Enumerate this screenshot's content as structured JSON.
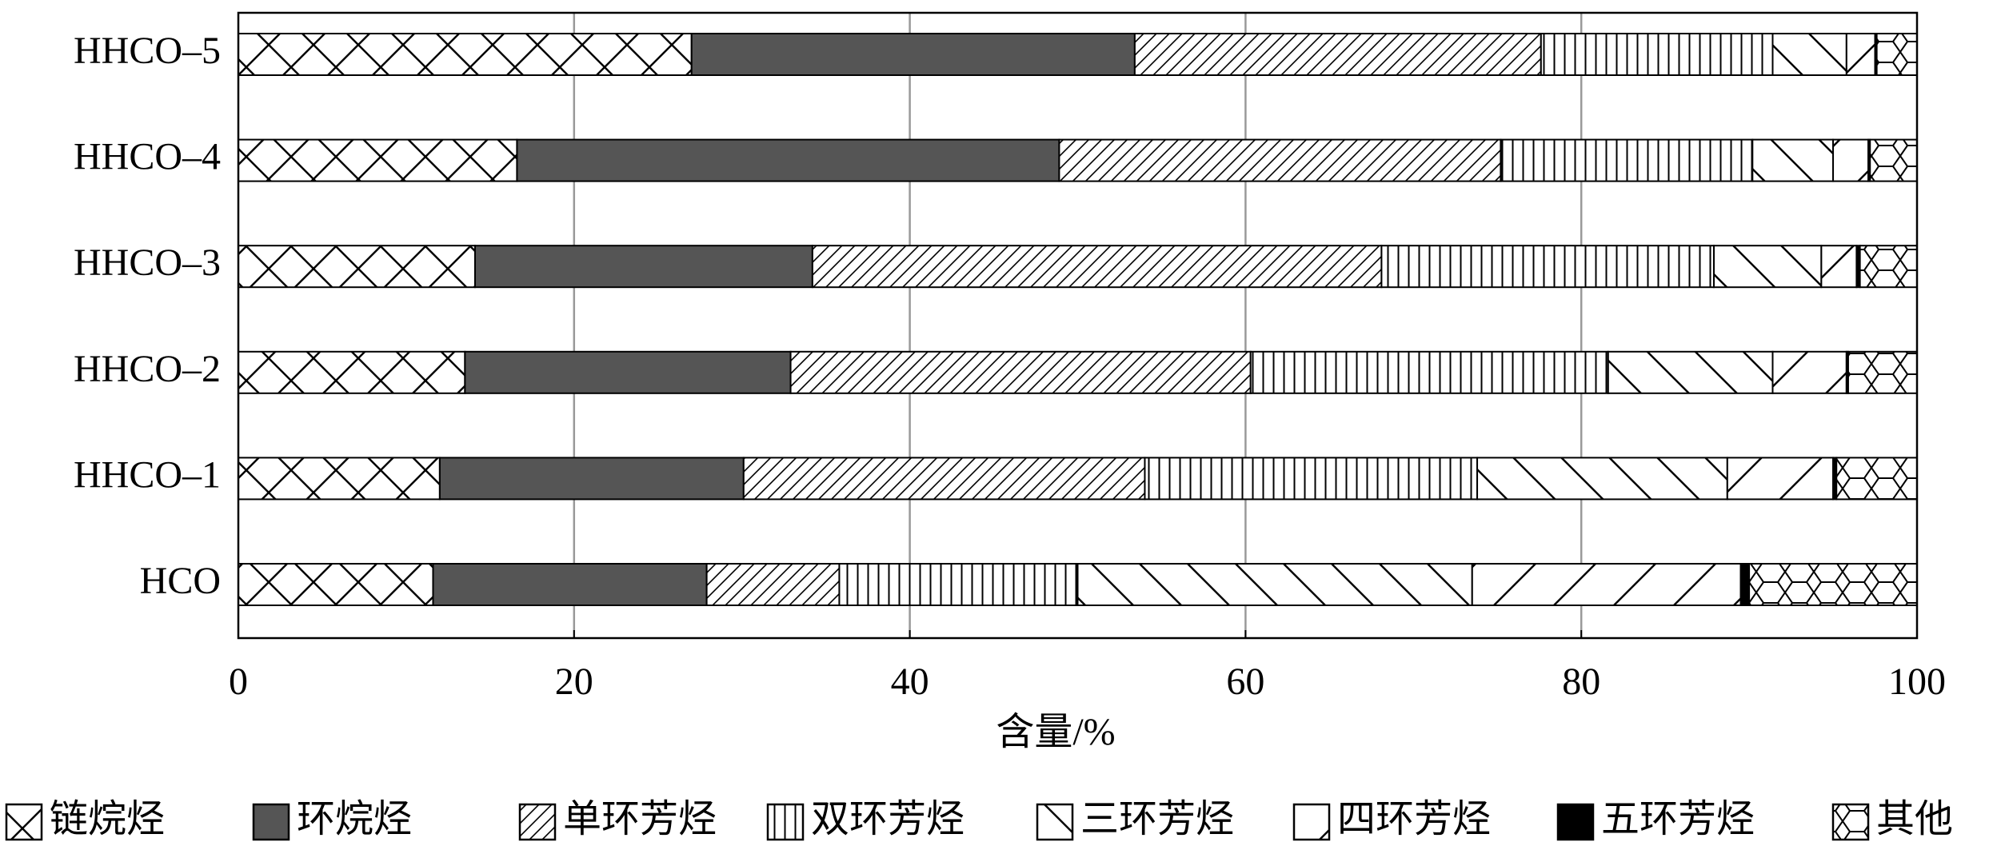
{
  "chart_data": {
    "type": "barh_stacked",
    "xlabel": "含量/%",
    "categories": [
      "HHCO–5",
      "HHCO–4",
      "HHCO–3",
      "HHCO–2",
      "HHCO–1",
      "HCO"
    ],
    "series": [
      {
        "name": "链烷烃",
        "color": "#ffffff",
        "hatch": "cross",
        "values": [
          27.0,
          16.6,
          14.1,
          13.5,
          12.0,
          11.6
        ]
      },
      {
        "name": "环烷烃",
        "color": "#555555",
        "values": [
          26.4,
          32.3,
          20.1,
          19.4,
          18.1,
          16.3
        ]
      },
      {
        "name": "单环芳烃",
        "color": "#ffffff",
        "hatch": "fine-diag",
        "values": [
          24.2,
          26.3,
          33.9,
          27.4,
          23.9,
          7.9
        ]
      },
      {
        "name": "双环芳烃",
        "color": "#ffffff",
        "hatch": "vertical",
        "values": [
          13.8,
          15.0,
          19.8,
          21.3,
          19.8,
          14.2
        ]
      },
      {
        "name": "三环芳烃",
        "color": "#ffffff",
        "hatch": "back-diag",
        "values": [
          4.4,
          4.8,
          6.4,
          9.8,
          14.9,
          23.5
        ]
      },
      {
        "name": "四环芳烃",
        "color": "#ffffff",
        "hatch": "wide-diag",
        "values": [
          1.7,
          2.1,
          2.1,
          4.4,
          6.3,
          16.0
        ]
      },
      {
        "name": "五环芳烃",
        "color": "#000000",
        "values": [
          0.1,
          0.1,
          0.2,
          0.1,
          0.2,
          0.5
        ]
      },
      {
        "name": "其他",
        "color": "#ffffff",
        "hatch": "hex",
        "values": [
          2.4,
          2.8,
          3.4,
          4.1,
          4.8,
          10.0
        ]
      }
    ],
    "xlim": [
      0,
      100
    ],
    "xticks": [
      0,
      20,
      40,
      60,
      80,
      100
    ],
    "grid": true
  }
}
